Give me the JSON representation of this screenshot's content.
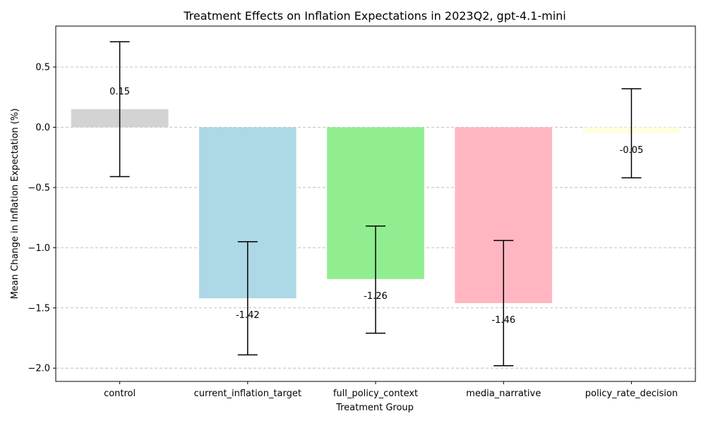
{
  "chart_data": {
    "type": "bar",
    "title": "Treatment Effects on Inflation Expectations in 2023Q2, gpt-4.1-mini",
    "xlabel": "Treatment Group",
    "ylabel": "Mean Change in Inflation Expectation (%)",
    "categories": [
      "control",
      "current_inflation_target",
      "full_policy_context",
      "media_narrative",
      "policy_rate_decision"
    ],
    "values": [
      0.15,
      -1.42,
      -1.26,
      -1.46,
      -0.05
    ],
    "data_labels": [
      "0.15",
      "-1.42",
      "-1.26",
      "-1.46",
      "-0.05"
    ],
    "error_low": [
      -0.41,
      -1.89,
      -1.71,
      -1.98,
      -0.42
    ],
    "error_high": [
      0.71,
      -0.95,
      -0.82,
      -0.94,
      0.32
    ],
    "colors": [
      "#d3d3d3",
      "#add8e6",
      "#90ee90",
      "#ffb6c1",
      "#ffffe0"
    ],
    "ylim": [
      -2.11,
      0.84
    ],
    "yticks": [
      0.5,
      0.0,
      -0.5,
      -1.0,
      -1.5,
      -2.0
    ],
    "ytick_labels": [
      "0.5",
      "0.0",
      "−0.5",
      "−1.0",
      "−1.5",
      "−2.0"
    ],
    "grid": "y-dashed",
    "legend": "none"
  }
}
